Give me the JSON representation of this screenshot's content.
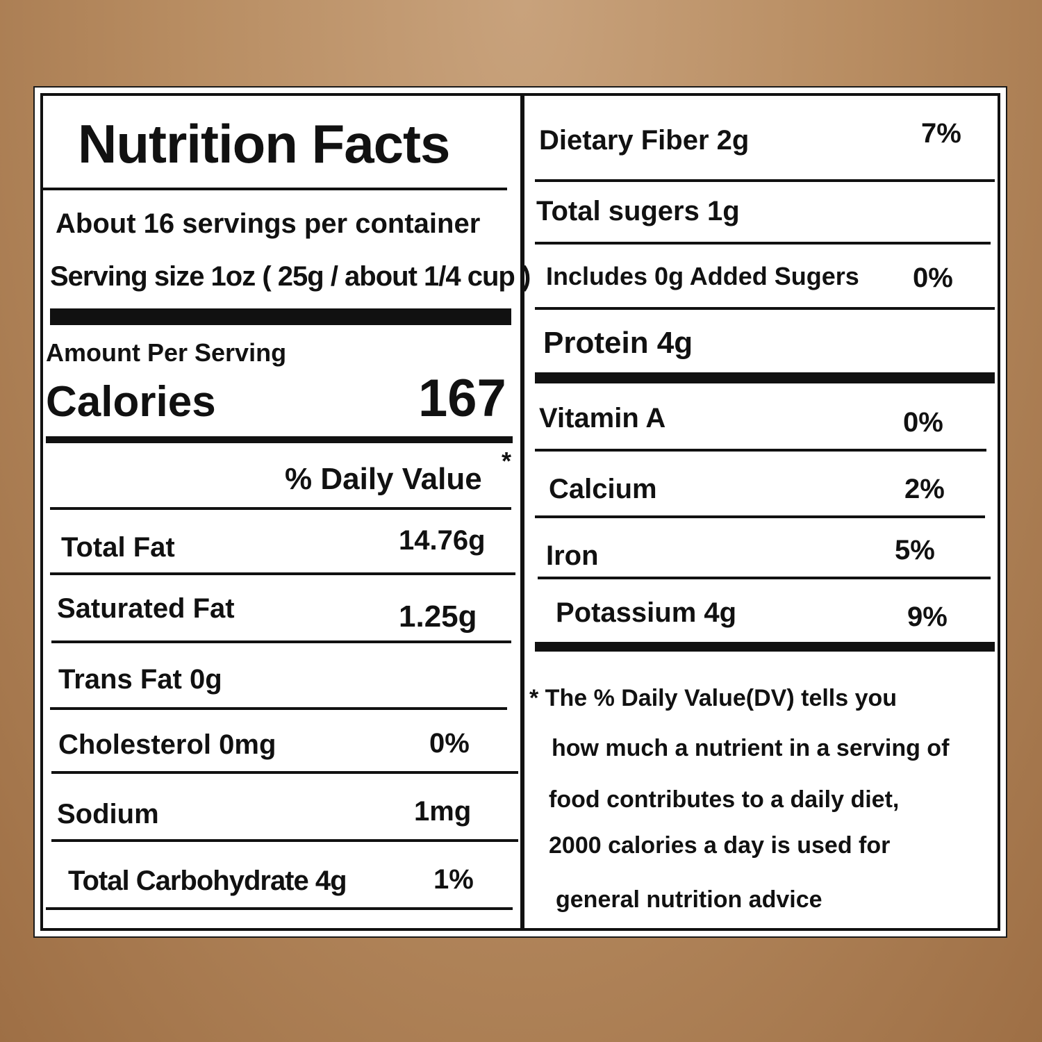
{
  "title": "Nutrition Facts",
  "servings_per_container": "About 16 servings per container",
  "serving_size": "Serving size 1oz ( 25g / about 1/4 cup )",
  "amount_per_serving": "Amount Per Serving",
  "calories": {
    "label": "Calories",
    "value": "167"
  },
  "daily_value_header": "% Daily Value",
  "asterisk": "*",
  "left_rows": [
    {
      "label": "Total Fat",
      "value": "14.76g"
    },
    {
      "label": "Saturated Fat",
      "value": "1.25g"
    },
    {
      "label": "Trans Fat 0g",
      "value": ""
    },
    {
      "label": "Cholesterol  0mg",
      "value": "0%"
    },
    {
      "label": "Sodium",
      "value": "1mg"
    },
    {
      "label": "Total Carbohydrate 4g",
      "value": "1%"
    }
  ],
  "right_rows": [
    {
      "label": "Dietary Fiber 2g",
      "value": "7%"
    },
    {
      "label": "Total sugers 1g",
      "value": ""
    },
    {
      "label": "Includes 0g Added Sugers",
      "value": "0%"
    },
    {
      "label": "Protein 4g",
      "value": ""
    },
    {
      "label": "Vitamin A",
      "value": "0%"
    },
    {
      "label": "Calcium",
      "value": "2%"
    },
    {
      "label": "Iron",
      "value": "5%"
    },
    {
      "label": "Potassium 4g",
      "value": "9%"
    }
  ],
  "footnote": {
    "line1": "* The % Daily Value(DV)  tells you",
    "line2": "how much a nutrient in a serving of",
    "line3": "food contributes to a daily diet,",
    "line4": "2000 calories a day is used for",
    "line5": "general nutrition advice"
  }
}
